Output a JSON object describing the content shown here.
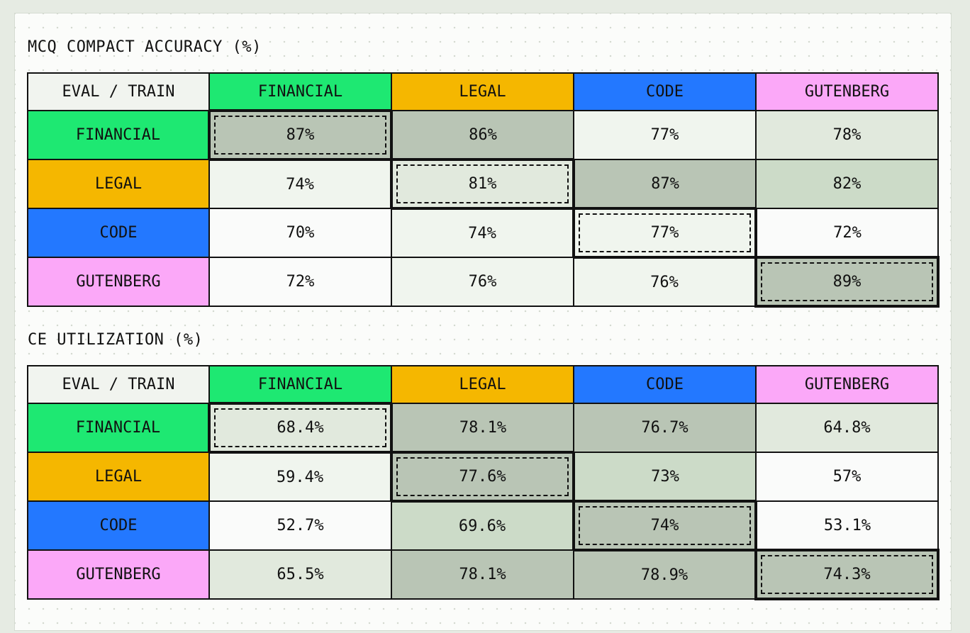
{
  "chart_data": [
    {
      "type": "heatmap",
      "title": "MCQ COMPACT ACCURACY (%)",
      "corner_label": "EVAL / TRAIN",
      "columns": [
        "FINANCIAL",
        "LEGAL",
        "CODE",
        "GUTENBERG"
      ],
      "rows": [
        "FINANCIAL",
        "LEGAL",
        "CODE",
        "GUTENBERG"
      ],
      "values": [
        [
          87,
          86,
          77,
          78
        ],
        [
          74,
          81,
          87,
          82
        ],
        [
          70,
          74,
          77,
          72
        ],
        [
          72,
          76,
          76,
          89
        ]
      ],
      "labels": [
        [
          "87%",
          "86%",
          "77%",
          "78%"
        ],
        [
          "74%",
          "81%",
          "87%",
          "82%"
        ],
        [
          "70%",
          "74%",
          "77%",
          "72%"
        ],
        [
          "72%",
          "76%",
          "76%",
          "89%"
        ]
      ],
      "diagonal_highlight": true
    },
    {
      "type": "heatmap",
      "title": "CE UTILIZATION (%)",
      "corner_label": "EVAL / TRAIN",
      "columns": [
        "FINANCIAL",
        "LEGAL",
        "CODE",
        "GUTENBERG"
      ],
      "rows": [
        "FINANCIAL",
        "LEGAL",
        "CODE",
        "GUTENBERG"
      ],
      "values": [
        [
          68.4,
          78.1,
          76.7,
          64.8
        ],
        [
          59.4,
          77.6,
          73,
          57
        ],
        [
          52.7,
          69.6,
          74,
          53.1
        ],
        [
          65.5,
          78.1,
          78.9,
          74.3
        ]
      ],
      "labels": [
        [
          "68.4%",
          "78.1%",
          "76.7%",
          "64.8%"
        ],
        [
          "59.4%",
          "77.6%",
          "73%",
          "57%"
        ],
        [
          "52.7%",
          "69.6%",
          "74%",
          "53.1%"
        ],
        [
          "65.5%",
          "78.1%",
          "78.9%",
          "74.3%"
        ]
      ],
      "diagonal_highlight": true
    }
  ],
  "domain_colors": {
    "FINANCIAL": "#1ee872",
    "LEGAL": "#f5b700",
    "CODE": "#2378ff",
    "GUTENBERG": "#fba8f8"
  },
  "heat_colors": [
    "#fafbfa",
    "#f0f5ee",
    "#e1e9dd",
    "#ccdbc8",
    "#b9c5b5"
  ]
}
